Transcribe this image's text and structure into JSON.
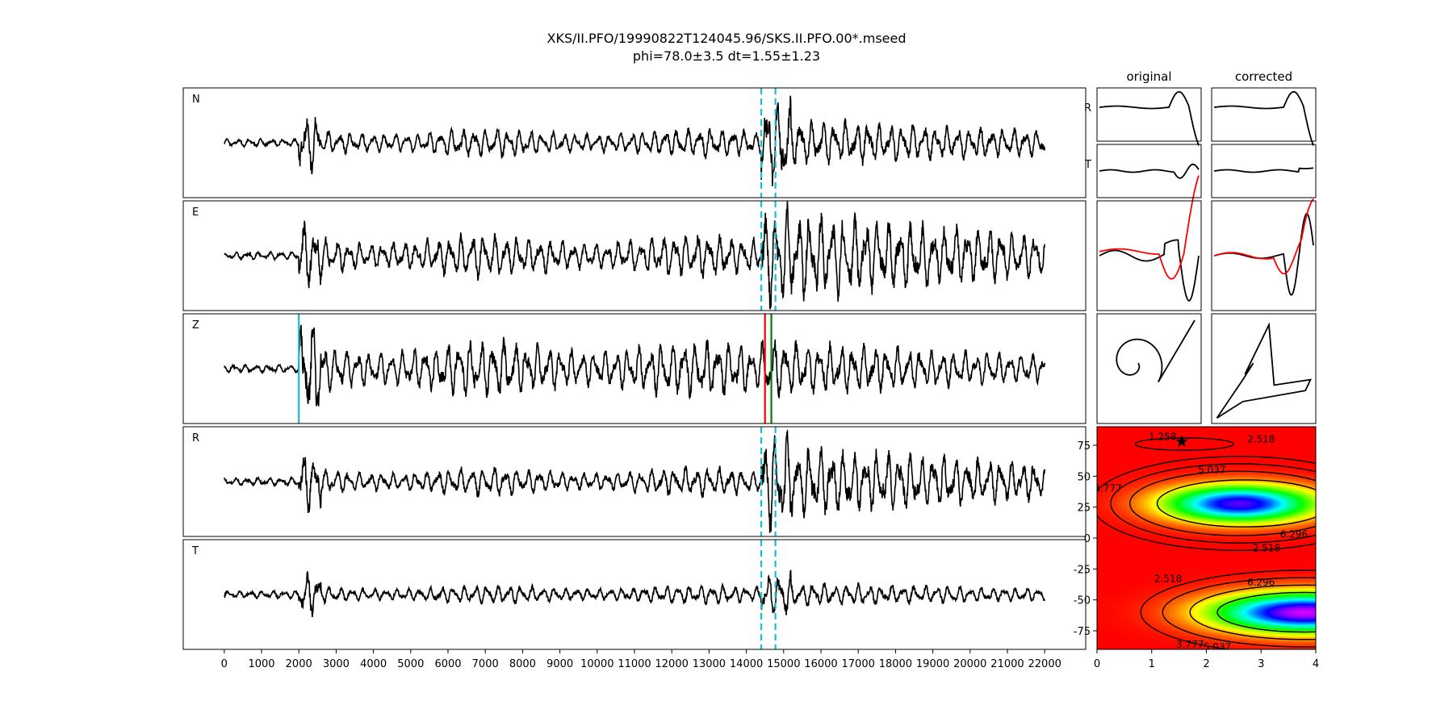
{
  "title": "XKS/II.PFO/19990822T124045.96/SKS.II.PFO.00*.mseed",
  "subtitle": "phi=78.0±3.5 dt=1.55±1.23",
  "chart_data": [
    {
      "type": "line",
      "description_panels": "waveform traces",
      "x_ticks": [
        0,
        1000,
        2000,
        3000,
        4000,
        5000,
        6000,
        7000,
        8000,
        9000,
        10000,
        11000,
        12000,
        13000,
        14000,
        15000,
        16000,
        17000,
        18000,
        19000,
        20000,
        21000,
        22000
      ],
      "xlim": [
        -1100,
        23100
      ],
      "traces": [
        {
          "label": "N",
          "amp_noise": 0.08,
          "amp_p": 0.6,
          "amp_coda": 0.3,
          "amp_s": 1.0,
          "amp_late": 0.5
        },
        {
          "label": "E",
          "amp_noise": 0.08,
          "amp_p": 0.7,
          "amp_coda": 0.45,
          "amp_s": 1.0,
          "amp_late": 0.9
        },
        {
          "label": "Z",
          "amp_noise": 0.08,
          "amp_p": 1.0,
          "amp_coda": 0.6,
          "amp_s": 0.6,
          "amp_late": 0.55
        },
        {
          "label": "R",
          "amp_noise": 0.08,
          "amp_p": 0.6,
          "amp_coda": 0.3,
          "amp_s": 1.0,
          "amp_late": 0.75
        },
        {
          "label": "T",
          "amp_noise": 0.08,
          "amp_p": 0.45,
          "amp_coda": 0.2,
          "amp_s": 0.45,
          "amp_late": 0.25
        }
      ],
      "window_markers": [
        14400,
        14780
      ],
      "z_markers": [
        {
          "x": 2000,
          "color": "#17becf"
        },
        {
          "x": 14500,
          "color": "#ff0000"
        },
        {
          "x": 14670,
          "color": "#008000"
        }
      ],
      "colors": {
        "trace": "#000000",
        "window": "#17becf"
      }
    },
    {
      "type": "line",
      "panels": "particle motion / component comparison",
      "column_titles": [
        "original",
        "corrected"
      ],
      "row_labels": [
        "R",
        "T"
      ]
    },
    {
      "type": "heatmap",
      "x_ticks": [
        0,
        1,
        2,
        3,
        4
      ],
      "y_ticks": [
        75,
        50,
        25,
        0,
        -25,
        -50,
        -75
      ],
      "xlim": [
        0,
        4
      ],
      "ylim": [
        -90,
        90
      ],
      "contour_labels": [
        "1.258",
        "2.518",
        "3.777",
        "5.037",
        "6.296"
      ],
      "best_fit": {
        "dt": 1.55,
        "phi": 78.0
      }
    }
  ]
}
